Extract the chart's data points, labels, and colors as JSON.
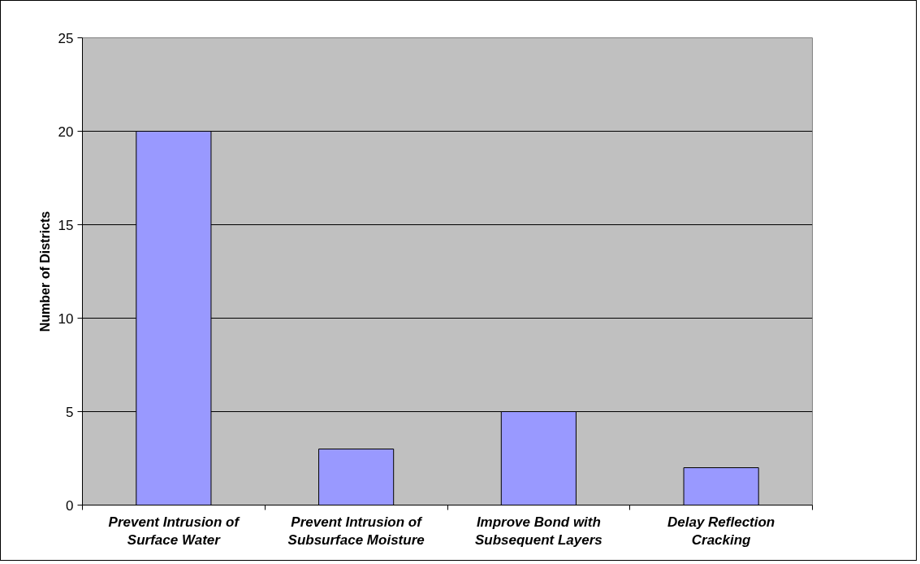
{
  "chart_data": {
    "type": "bar",
    "ylabel": "Number of Districts",
    "categories": [
      "Prevent Intrusion of\nSurface Water",
      "Prevent Intrusion of\nSubsurface Moisture",
      "Improve Bond with\nSubsequent Layers",
      "Delay Reflection\nCracking"
    ],
    "values": [
      20,
      3,
      5,
      2
    ],
    "color": "#9999ff",
    "ylim": [
      0,
      25
    ],
    "yticks": [
      0,
      5,
      10,
      15,
      20,
      25
    ],
    "grid": "y"
  }
}
